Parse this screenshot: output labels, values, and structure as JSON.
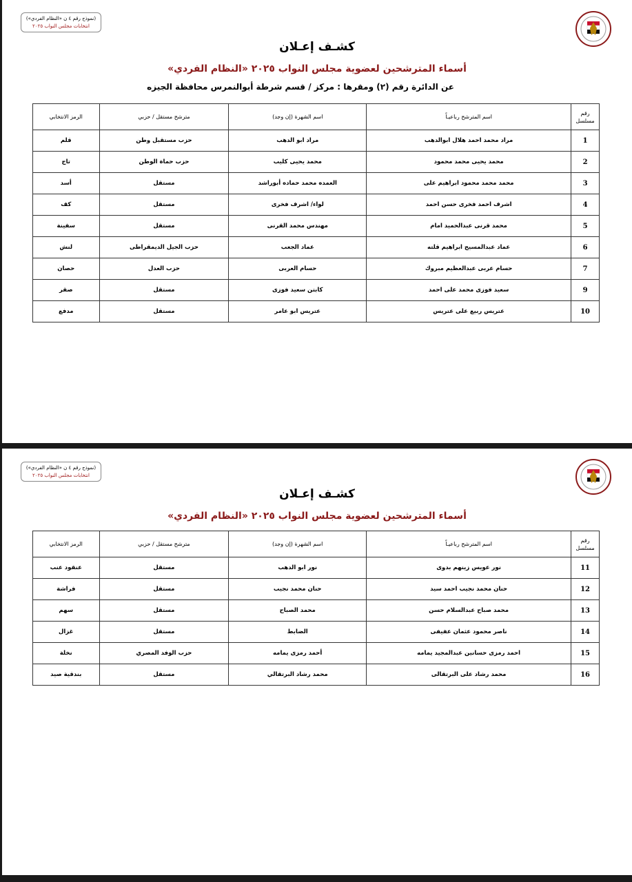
{
  "form_label": {
    "line1": "(نموذج رقم ٤ ن «النظام الفردي»)",
    "line2": "انتخابات مجلس النواب ٢٠٢٥"
  },
  "title": "كشـف إعـلان",
  "subtitle": "أسماء المترشحين لعضوية مجلس النواب ٢٠٢٥ «النظام الفردي»",
  "district_line": "عن الدائرة رقم (٢)   ومقرها : مركز / قسم شرطة  أبوالنمرس   محافظة  الجيزه",
  "columns": {
    "num": "رقم مسلسل",
    "name": "اسم المترشح رباعيـاً",
    "fame": "اسم الشهرة (إن وجد)",
    "party": "مترشح مستقل / حزبي",
    "symbol": "الرمز الانتخابي"
  },
  "colors": {
    "subtitle": "#8b1a1a",
    "border": "#333333"
  },
  "page1_rows": [
    {
      "num": "1",
      "name": "مراد محمد احمد هلال ابوالدهب",
      "fame": "مراد ابو الدهب",
      "party": "حزب مستقبل وطن",
      "symbol": "قلم"
    },
    {
      "num": "2",
      "name": "محمد يحيى محمد محمود",
      "fame": "محمد يحيى كليب",
      "party": "حزب حماة الوطن",
      "symbol": "تاج"
    },
    {
      "num": "3",
      "name": "محمد محمد محمود ابراهيم على",
      "fame": "العمده محمد حماده أبوراشد",
      "party": "مستقل",
      "symbol": "أسد"
    },
    {
      "num": "4",
      "name": "اشرف احمد فخرى حسن احمد",
      "fame": "لواء/ اشرف فخرى",
      "party": "مستقل",
      "symbol": "كف"
    },
    {
      "num": "5",
      "name": "محمد قرنى عبدالحميد امام",
      "fame": "مهندس محمد القرنى",
      "party": "مستقل",
      "symbol": "سفينة"
    },
    {
      "num": "6",
      "name": "عماد عبدالمسيح ابراهيم قلته",
      "fame": "عماد الجعب",
      "party": "حزب الجيل الديمقراطى",
      "symbol": "لنش"
    },
    {
      "num": "7",
      "name": "حسام عربى عبدالعظيم مبروك",
      "fame": "حسام العربى",
      "party": "حزب العدل",
      "symbol": "حصان"
    },
    {
      "num": "9",
      "name": "سعيد فوزى محمد على احمد",
      "fame": "كابتن سعيد فوزى",
      "party": "مستقل",
      "symbol": "صقر"
    },
    {
      "num": "10",
      "name": "عتريس ربيع على عتريس",
      "fame": "عتريس ابو عامر",
      "party": "مستقل",
      "symbol": "مدفع"
    }
  ],
  "page2_rows": [
    {
      "num": "11",
      "name": "نور عويس زينهم بدوى",
      "fame": "نور ابو الدهب",
      "party": "مستقل",
      "symbol": "عنقود عنب"
    },
    {
      "num": "12",
      "name": "حنان محمد نجيب احمد سيد",
      "fame": "حنان محمد نجيب",
      "party": "مستقل",
      "symbol": "فراشة"
    },
    {
      "num": "13",
      "name": "محمد صباح عبدالسلام حسن",
      "fame": "محمد الصباح",
      "party": "مستقل",
      "symbol": "سهم"
    },
    {
      "num": "14",
      "name": "ناصر محمود عثمان عفيفى",
      "fame": "الضابط",
      "party": "مستقل",
      "symbol": "غزال"
    },
    {
      "num": "15",
      "name": "احمد رمزى حسانين عبدالمجيد يمامه",
      "fame": "أحمد رمزى يمامه",
      "party": "حزب الوفد المصري",
      "symbol": "نخلة"
    },
    {
      "num": "16",
      "name": "محمد رشاد على البرتقالى",
      "fame": "محمد رشاد البرتقالي",
      "party": "مستقل",
      "symbol": "بندقية صيد"
    }
  ]
}
